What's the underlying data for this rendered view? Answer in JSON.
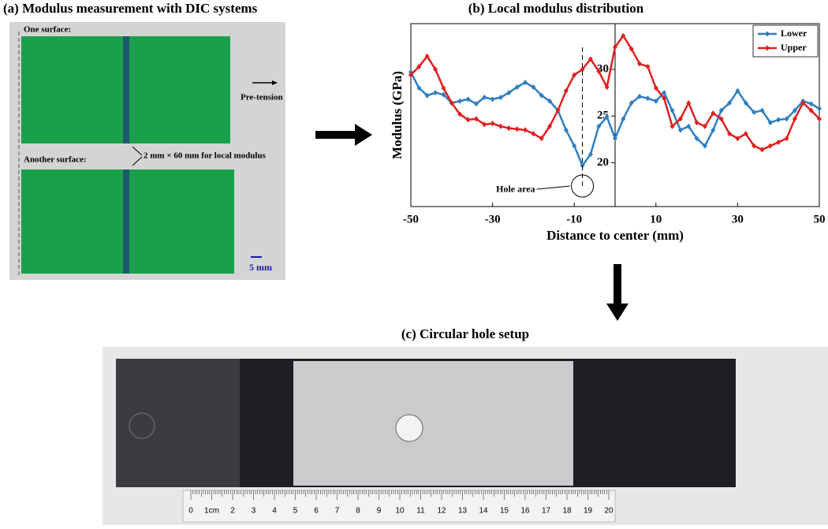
{
  "panel_a": {
    "title": "(a) Modulus measurement with DIC systems",
    "surface_1": "One surface:",
    "surface_2": "Another surface:",
    "arrow_label": "Pre-tension",
    "strip_label": "2 mm × 60 mm for local modulus",
    "scale_label": "5 mm"
  },
  "chart_data": {
    "type": "line",
    "title": "(b) Local modulus distribution",
    "x_label": "Distance to center (mm)",
    "y_label": "Modulus (GPa)",
    "x": [
      -50,
      -48,
      -46,
      -44,
      -42,
      -40,
      -38,
      -36,
      -34,
      -32,
      -30,
      -28,
      -26,
      -24,
      -22,
      -20,
      -18,
      -16,
      -14,
      -12,
      -10,
      -8,
      -6,
      -4,
      -2,
      0,
      2,
      4,
      6,
      8,
      10,
      12,
      14,
      16,
      18,
      20,
      22,
      24,
      26,
      28,
      30,
      32,
      34,
      36,
      38,
      40,
      42,
      44,
      46,
      48,
      50
    ],
    "series": [
      {
        "name": "Lower",
        "color": "#2f7fc1",
        "values": [
          29.7,
          28.0,
          27.2,
          27.5,
          27.3,
          26.4,
          26.6,
          26.8,
          26.3,
          27.0,
          26.8,
          27.0,
          27.5,
          28.1,
          28.6,
          28.1,
          27.2,
          26.6,
          25.6,
          23.5,
          21.8,
          19.7,
          20.9,
          23.9,
          24.9,
          22.6,
          24.7,
          26.4,
          27.1,
          26.9,
          26.6,
          27.5,
          25.6,
          23.5,
          23.9,
          22.6,
          21.8,
          23.5,
          25.6,
          26.4,
          27.7,
          26.4,
          25.4,
          25.6,
          24.3,
          24.6,
          24.7,
          25.6,
          26.6,
          26.3,
          25.8
        ]
      },
      {
        "name": "Upper",
        "color": "#e02020",
        "values": [
          29.4,
          30.3,
          31.4,
          30.0,
          28.0,
          26.4,
          25.2,
          24.6,
          24.7,
          24.1,
          24.2,
          23.9,
          23.7,
          23.6,
          23.5,
          23.1,
          22.6,
          23.9,
          25.6,
          27.7,
          29.4,
          30.0,
          31.1,
          29.8,
          28.1,
          32.4,
          33.6,
          32.2,
          30.6,
          30.3,
          28.0,
          26.9,
          23.9,
          24.7,
          26.4,
          24.3,
          23.9,
          25.3,
          24.7,
          23.1,
          22.6,
          23.1,
          21.8,
          21.4,
          21.8,
          22.2,
          22.6,
          24.7,
          26.4,
          25.6,
          24.7
        ]
      }
    ],
    "xlim": [
      -50,
      50
    ],
    "xticks": [
      -50,
      -30,
      -10,
      10,
      30,
      50
    ],
    "ylim": [
      15.3,
      34.9
    ],
    "yticks": [
      20,
      25,
      30
    ],
    "legend": "upper right",
    "annotations": [
      {
        "text": "Hole area",
        "x": -8,
        "y": 17.5
      }
    ]
  },
  "panel_c": {
    "title": "(c) Circular hole setup",
    "ruler_labels": [
      "0",
      "1cm",
      "2",
      "3",
      "4",
      "5",
      "6",
      "7",
      "8",
      "9",
      "10",
      "11",
      "12",
      "13",
      "14",
      "15",
      "16",
      "17",
      "18",
      "19",
      "20"
    ]
  }
}
